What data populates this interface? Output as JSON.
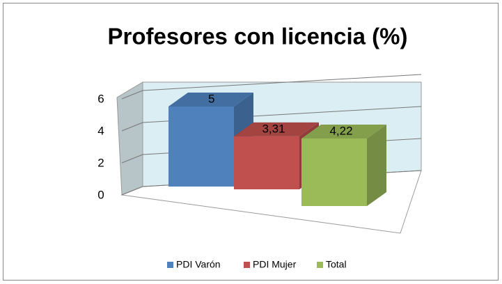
{
  "chart_data": {
    "type": "bar3d",
    "title": "Profesores con licencia (%)",
    "series": [
      {
        "name": "PDI Varón",
        "color": "#4f81bd",
        "values": [
          5
        ],
        "value_labels": [
          "5"
        ]
      },
      {
        "name": "PDI Mujer",
        "color": "#c0504d",
        "values": [
          3.31
        ],
        "value_labels": [
          "3,31"
        ]
      },
      {
        "name": "Total",
        "color": "#9bbb59",
        "values": [
          4.22
        ],
        "value_labels": [
          "4,22"
        ]
      }
    ],
    "ylim": [
      0,
      6
    ],
    "yticks": [
      0,
      2,
      4,
      6
    ],
    "grid": true,
    "legend": "bottom"
  }
}
